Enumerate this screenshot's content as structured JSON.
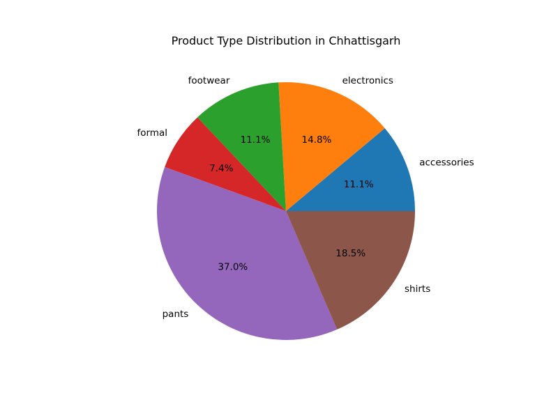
{
  "chart_data": {
    "type": "pie",
    "title": "Product Type Distribution in Chhattisgarh",
    "categories": [
      "accessories",
      "electronics",
      "footwear",
      "formal",
      "pants",
      "shirts"
    ],
    "values": [
      11.1,
      14.8,
      11.1,
      7.4,
      37.0,
      18.5
    ],
    "percent_labels": [
      "11.1%",
      "14.8%",
      "11.1%",
      "7.4%",
      "37.0%",
      "18.5%"
    ],
    "colors": [
      "#1f77b4",
      "#ff7f0e",
      "#2ca02c",
      "#d62728",
      "#9467bd",
      "#8c564b"
    ],
    "start_angle_deg": 0,
    "direction": "counterclockwise"
  }
}
